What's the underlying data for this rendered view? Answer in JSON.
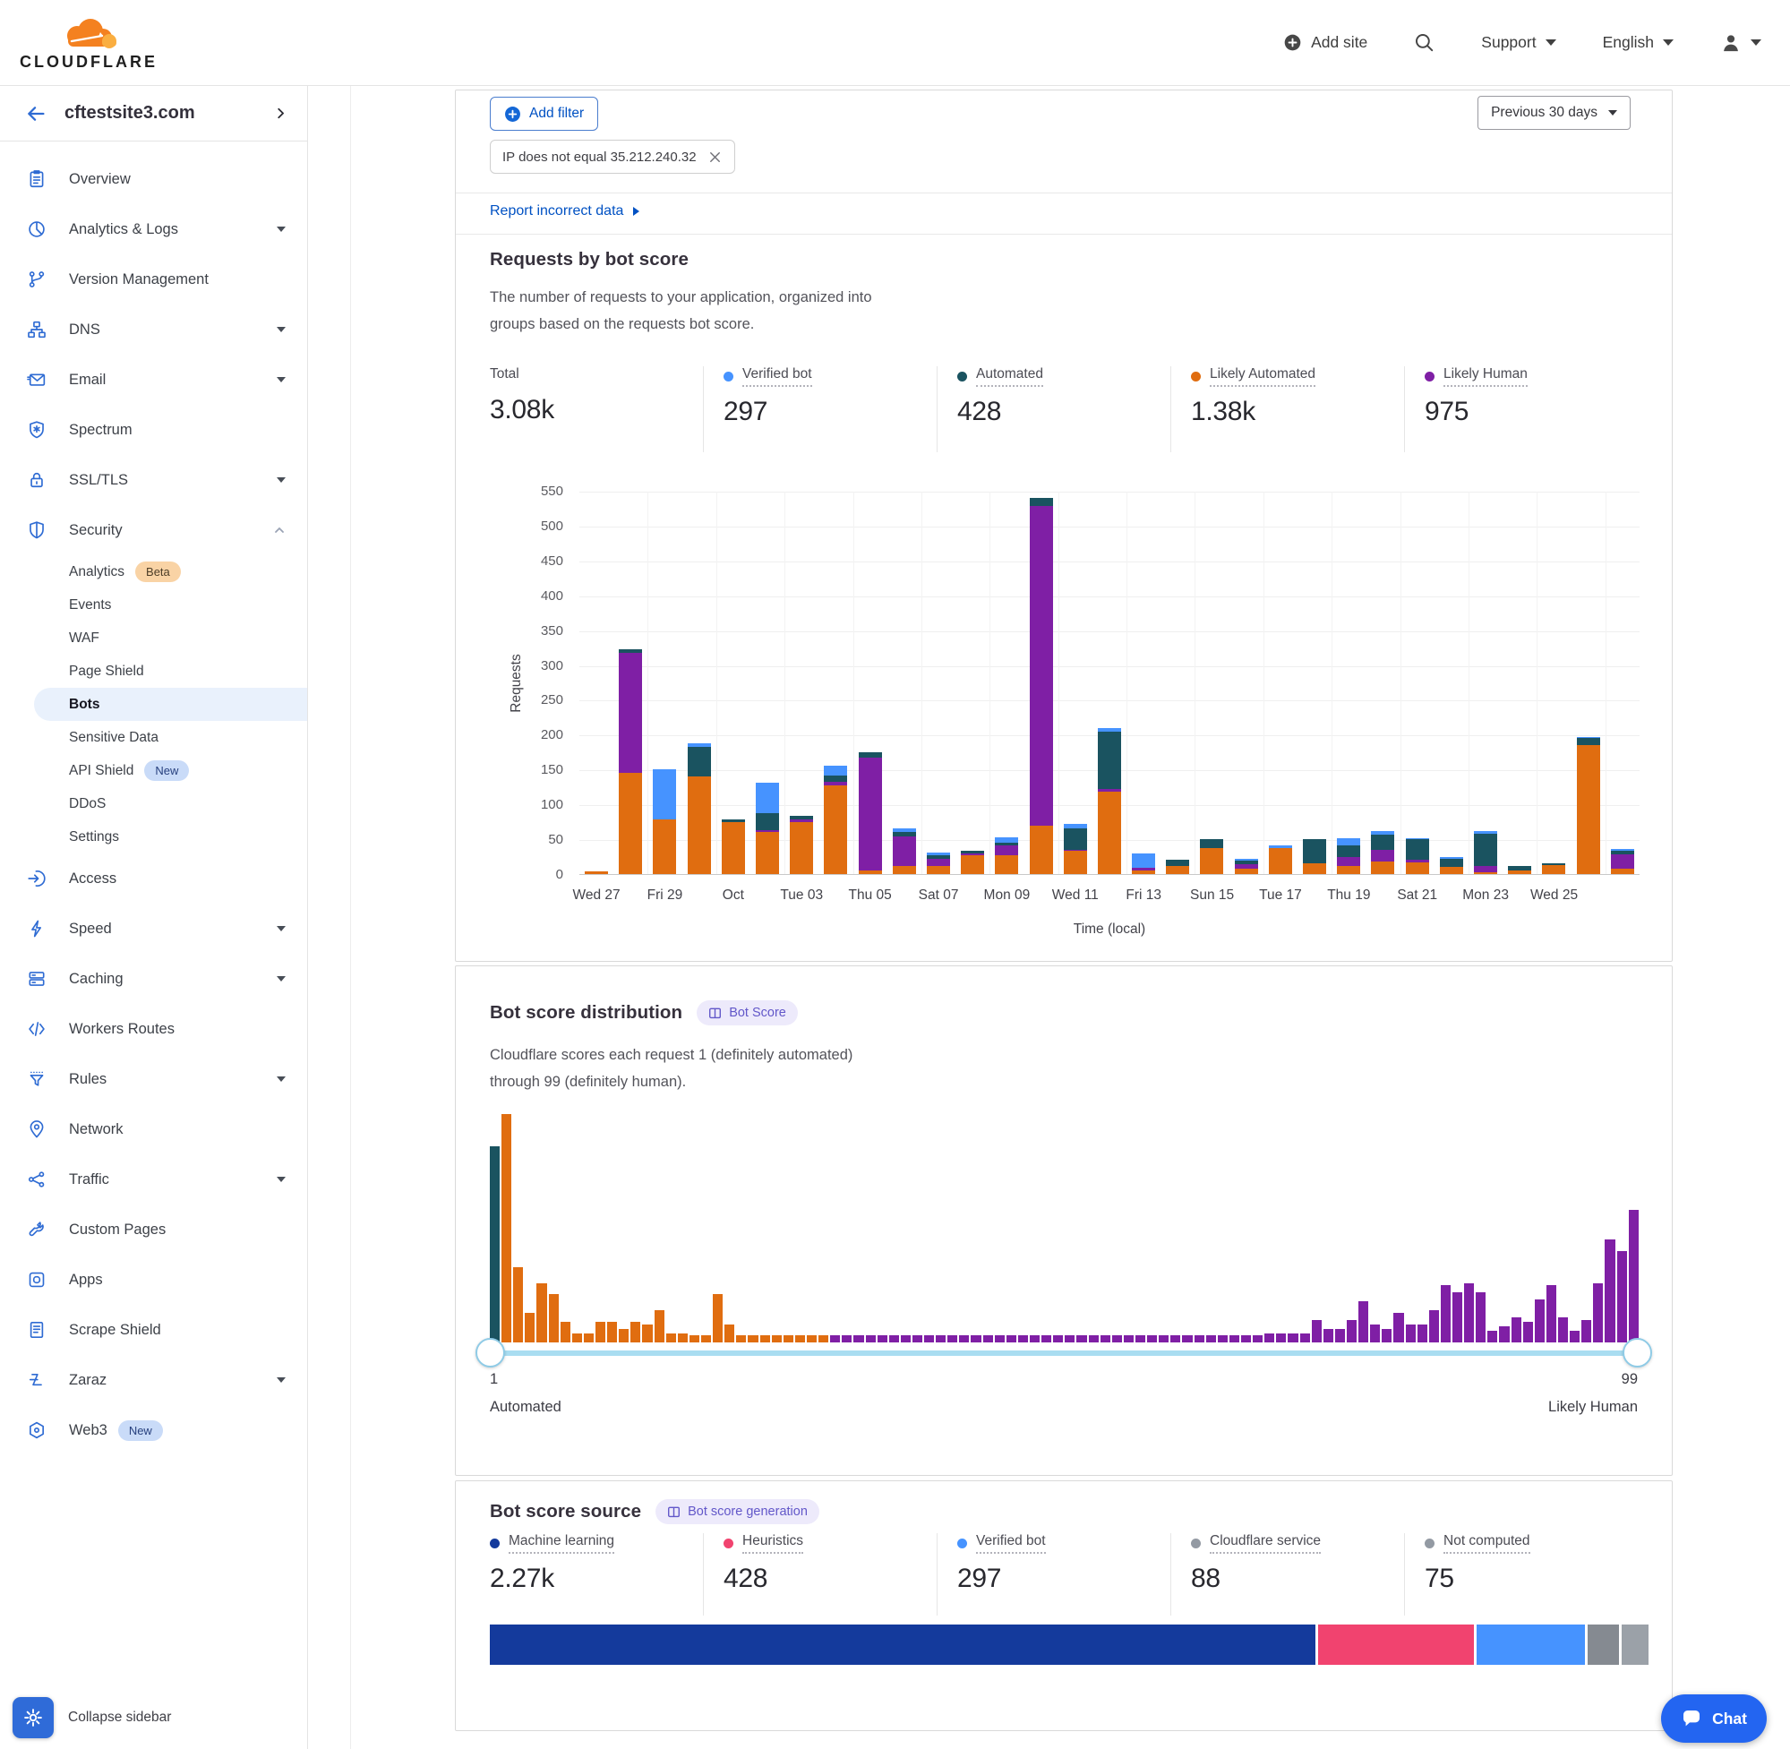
{
  "header": {
    "brand": "CLOUDFLARE",
    "add_site": "Add site",
    "support": "Support",
    "language": "English"
  },
  "sidebar": {
    "site": "cftestsite3.com",
    "collapse_label": "Collapse sidebar",
    "items": [
      {
        "label": "Overview",
        "icon": "clipboard"
      },
      {
        "label": "Analytics & Logs",
        "icon": "pie",
        "caret": "down"
      },
      {
        "label": "Version Management",
        "icon": "branch"
      },
      {
        "label": "DNS",
        "icon": "sitemap",
        "caret": "down"
      },
      {
        "label": "Email",
        "icon": "envelope",
        "caret": "down"
      },
      {
        "label": "Spectrum",
        "icon": "shield-star"
      },
      {
        "label": "SSL/TLS",
        "icon": "lock",
        "caret": "down"
      },
      {
        "label": "Security",
        "icon": "shield",
        "caret": "up",
        "children": [
          {
            "label": "Analytics",
            "badge": "Beta",
            "badge_style": "beta"
          },
          {
            "label": "Events"
          },
          {
            "label": "WAF"
          },
          {
            "label": "Page Shield"
          },
          {
            "label": "Bots",
            "active": true
          },
          {
            "label": "Sensitive Data"
          },
          {
            "label": "API Shield",
            "badge": "New",
            "badge_style": "new"
          },
          {
            "label": "DDoS"
          },
          {
            "label": "Settings"
          }
        ]
      },
      {
        "label": "Access",
        "icon": "login"
      },
      {
        "label": "Speed",
        "icon": "bolt",
        "caret": "down"
      },
      {
        "label": "Caching",
        "icon": "layers",
        "caret": "down"
      },
      {
        "label": "Workers Routes",
        "icon": "code"
      },
      {
        "label": "Rules",
        "icon": "funnel",
        "caret": "down"
      },
      {
        "label": "Network",
        "icon": "pin"
      },
      {
        "label": "Traffic",
        "icon": "share",
        "caret": "down"
      },
      {
        "label": "Custom Pages",
        "icon": "wrench"
      },
      {
        "label": "Apps",
        "icon": "app"
      },
      {
        "label": "Scrape Shield",
        "icon": "document"
      },
      {
        "label": "Zaraz",
        "icon": "zaraz",
        "caret": "down"
      },
      {
        "label": "Web3",
        "icon": "hexagon",
        "badge": "New",
        "badge_style": "new"
      }
    ]
  },
  "toolbar": {
    "add_filter": "Add filter",
    "filter_chip": "IP does not equal 35.212.240.32",
    "date_range": "Previous 30 days",
    "report_link": "Report incorrect data"
  },
  "requests": {
    "title": "Requests by bot score",
    "description_line1": "The number of requests to your application, organized into",
    "description_line2": "groups based on the requests bot score.",
    "stats": [
      {
        "label": "Total",
        "value": "3.08k"
      },
      {
        "label": "Verified bot",
        "value": "297",
        "color": "#4693ff",
        "underline": true
      },
      {
        "label": "Automated",
        "value": "428",
        "color": "#1a5360",
        "underline": true
      },
      {
        "label": "Likely Automated",
        "value": "1.38k",
        "color": "#e06d10",
        "underline": true
      },
      {
        "label": "Likely Human",
        "value": "975",
        "color": "#7f1fa5",
        "underline": true
      }
    ]
  },
  "chart_data": {
    "type": "bar",
    "stacked": true,
    "title": "Requests by bot score",
    "xlabel": "Time (local)",
    "ylabel": "Requests",
    "ylim": [
      0,
      550
    ],
    "yticks": [
      0,
      50,
      100,
      150,
      200,
      250,
      300,
      350,
      400,
      450,
      500,
      550
    ],
    "tick_labels": [
      "Wed 27",
      "Fri 29",
      "Oct",
      "Tue 03",
      "Thu 05",
      "Sat 07",
      "Mon 09",
      "Wed 11",
      "Fri 13",
      "Sun 15",
      "Tue 17",
      "Thu 19",
      "Sat 21",
      "Mon 23",
      "Wed 25"
    ],
    "series_order": [
      "Likely Automated",
      "Likely Human",
      "Automated",
      "Verified bot"
    ],
    "series_colors": {
      "Likely Automated": "#e06d10",
      "Likely Human": "#7f1fa5",
      "Automated": "#1a5360",
      "Verified bot": "#4693ff"
    },
    "bars": [
      [
        4,
        0,
        0,
        0
      ],
      [
        145,
        173,
        5,
        0
      ],
      [
        78,
        0,
        0,
        73
      ],
      [
        140,
        0,
        42,
        6
      ],
      [
        75,
        0,
        4,
        0
      ],
      [
        60,
        3,
        24,
        44
      ],
      [
        75,
        4,
        5,
        0
      ],
      [
        127,
        5,
        9,
        14
      ],
      [
        5,
        162,
        8,
        0
      ],
      [
        12,
        42,
        6,
        5
      ],
      [
        11,
        11,
        5,
        4
      ],
      [
        27,
        2,
        4,
        0
      ],
      [
        27,
        14,
        4,
        8
      ],
      [
        70,
        458,
        12,
        0
      ],
      [
        33,
        2,
        30,
        7
      ],
      [
        118,
        4,
        83,
        5
      ],
      [
        5,
        4,
        0,
        21
      ],
      [
        12,
        0,
        8,
        0
      ],
      [
        37,
        0,
        13,
        0
      ],
      [
        8,
        6,
        5,
        3
      ],
      [
        37,
        0,
        0,
        4
      ],
      [
        15,
        0,
        35,
        0
      ],
      [
        12,
        13,
        16,
        10
      ],
      [
        18,
        17,
        22,
        5
      ],
      [
        17,
        3,
        30,
        2
      ],
      [
        10,
        0,
        12,
        3
      ],
      [
        2,
        10,
        46,
        4
      ],
      [
        5,
        0,
        7,
        0
      ],
      [
        13,
        0,
        3,
        0
      ],
      [
        185,
        0,
        10,
        2
      ],
      [
        8,
        20,
        5,
        3
      ]
    ]
  },
  "distribution": {
    "title": "Bot score distribution",
    "badge": "Bot Score",
    "description_line1": "Cloudflare scores each request 1 (definitely automated)",
    "description_line2": "through 99 (definitely human).",
    "slider_min": "1",
    "slider_max": "99",
    "min_label": "Automated",
    "max_label": "Likely Human",
    "histogram": {
      "score_range": [
        1,
        99
      ],
      "colors": {
        "automated": "#1a5360",
        "likely_automated": "#e06d10",
        "likely_human": "#7f1fa5"
      },
      "color_rule": "score 1 automated, scores 2-29 likely automated, scores 30-99 likely human",
      "values": [
        86,
        100,
        33,
        13,
        26,
        21,
        9,
        4,
        4,
        9,
        9,
        6,
        9,
        8,
        14,
        4,
        4,
        3,
        3,
        21,
        8,
        3,
        3,
        3,
        3,
        3,
        3,
        3,
        3,
        3,
        3,
        3,
        3,
        3,
        3,
        3,
        3,
        3,
        3,
        3,
        3,
        3,
        3,
        3,
        3,
        3,
        3,
        3,
        3,
        3,
        3,
        3,
        3,
        3,
        3,
        3,
        3,
        3,
        3,
        3,
        3,
        3,
        3,
        3,
        3,
        3,
        4,
        4,
        4,
        4,
        10,
        6,
        6,
        10,
        18,
        8,
        6,
        13,
        8,
        8,
        14,
        25,
        22,
        26,
        22,
        5,
        7,
        11,
        9,
        19,
        25,
        11,
        5,
        10,
        26,
        45,
        40,
        58
      ]
    }
  },
  "source": {
    "title": "Bot score source",
    "badge": "Bot score generation",
    "stats": [
      {
        "label": "Machine learning",
        "value": "2.27k",
        "color": "#143a9c",
        "underline": true
      },
      {
        "label": "Heuristics",
        "value": "428",
        "color": "#f1436f",
        "underline": true
      },
      {
        "label": "Verified bot",
        "value": "297",
        "color": "#4693ff",
        "underline": true
      },
      {
        "label": "Cloudflare service",
        "value": "88",
        "color": "#939aa3",
        "underline": true
      },
      {
        "label": "Not computed",
        "value": "75",
        "color": "#939aa3",
        "underline": true
      }
    ],
    "bar_segments": [
      {
        "label": "Machine learning",
        "pct": 71.9,
        "color": "#143a9c"
      },
      {
        "label": "Heuristics",
        "pct": 13.6,
        "color": "#f1436f"
      },
      {
        "label": "Verified bot",
        "pct": 9.4,
        "color": "#4693ff"
      },
      {
        "label": "Cloudflare service",
        "pct": 2.8,
        "color": "#858a91"
      },
      {
        "label": "Not computed",
        "pct": 2.3,
        "color": "#9ba1a8"
      }
    ]
  },
  "chat": {
    "label": "Chat"
  }
}
